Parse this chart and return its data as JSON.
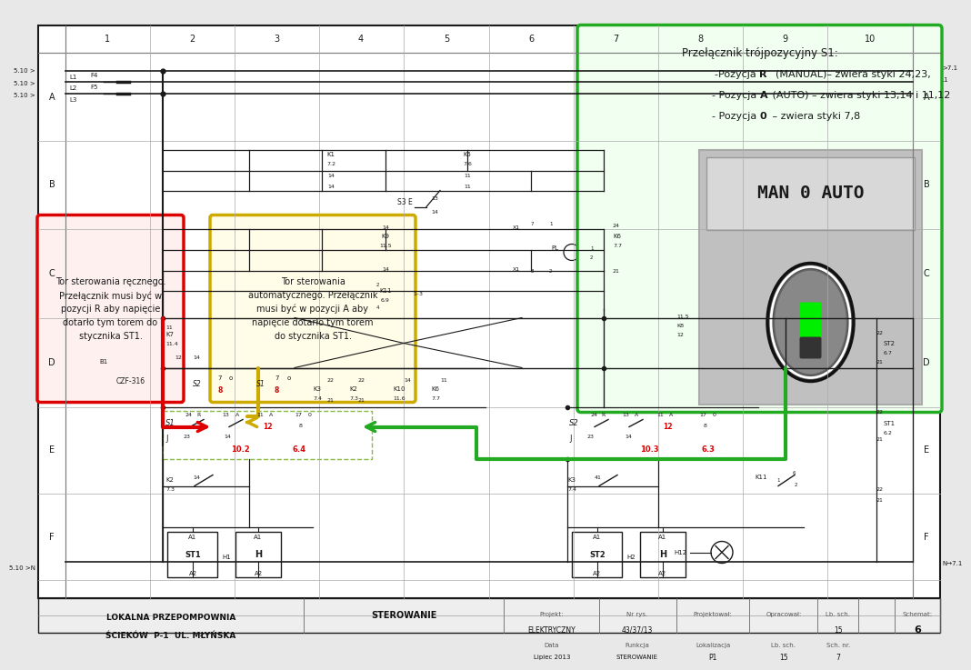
{
  "bg_color": "#e8e8e8",
  "white": "#ffffff",
  "dark": "#1a1a1a",
  "red": "#dd0000",
  "yellow": "#ccaa00",
  "green": "#22aa22",
  "light_green_bg": "#f0fff0",
  "light_yellow_bg": "#fffce8",
  "light_red_bg": "#fff0f0",
  "gray_mid": "#888888",
  "gray_light": "#cccccc",
  "col_labels": [
    "1",
    "2",
    "3",
    "4",
    "5",
    "6",
    "7",
    "8",
    "9",
    "10"
  ],
  "row_labels": [
    "A",
    "B",
    "C",
    "D",
    "E",
    "F"
  ],
  "red_box_text": "Tor sterowania ręcznego.\nPrzełącznik musi być w\npozycji R aby napięcie\ndotarło tym torem do\nstycznika ST1.",
  "yellow_box_text": "Tor sterowania\nautomatycznego. Przełącznik\nmusi być w pozycji A aby\nnapięcie dotarło tym torem\ndo stycznika ST1.",
  "green_box_title": "Przełącznik trójpozycyjny S1:",
  "footer_left1": "LOKALNA PRZEPOMPOWNIA",
  "footer_left2": "ŚCIEKÓW  P-1  UL. MŁYŃSKA",
  "footer_mid": "STEROWANIE"
}
